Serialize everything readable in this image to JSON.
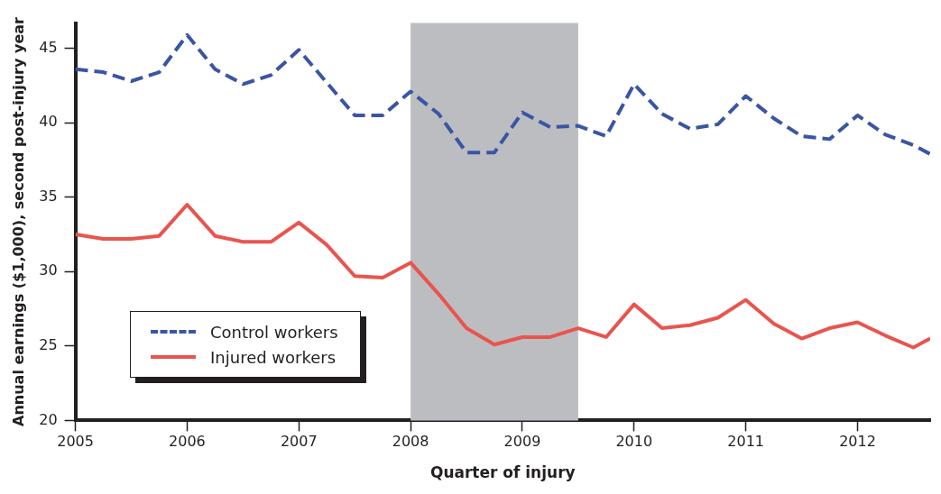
{
  "chart_data": {
    "type": "line",
    "xlabel": "Quarter of injury",
    "ylabel": "Annual earnings ($1,000), second post-injury year",
    "x": [
      2005,
      2005.25,
      2005.5,
      2005.75,
      2006,
      2006.25,
      2006.5,
      2006.75,
      2007,
      2007.25,
      2007.5,
      2007.75,
      2008,
      2008.25,
      2008.5,
      2008.75,
      2009,
      2009.25,
      2009.5,
      2009.75,
      2010,
      2010.25,
      2010.5,
      2010.75,
      2011,
      2011.25,
      2011.5,
      2011.75,
      2012,
      2012.25,
      2012.5,
      2012.65
    ],
    "series": [
      {
        "name": "Control workers",
        "color": "#3a55a4",
        "line_style": "dashed",
        "values": [
          43.6,
          43.4,
          42.8,
          43.4,
          45.9,
          43.6,
          42.6,
          43.2,
          44.9,
          42.7,
          40.5,
          40.5,
          42.1,
          40.6,
          38.0,
          38.0,
          40.7,
          39.7,
          39.8,
          39.1,
          42.6,
          40.6,
          39.6,
          39.9,
          41.8,
          40.3,
          39.1,
          38.9,
          40.5,
          39.2,
          38.5,
          37.9
        ]
      },
      {
        "name": "Injured workers",
        "color": "#e8554e",
        "line_style": "solid",
        "values": [
          32.5,
          32.2,
          32.2,
          32.4,
          34.5,
          32.4,
          32.0,
          32.0,
          33.3,
          31.8,
          29.7,
          29.6,
          30.6,
          28.5,
          26.2,
          25.1,
          25.6,
          25.6,
          26.2,
          25.6,
          27.8,
          26.2,
          26.4,
          26.9,
          28.1,
          26.5,
          25.5,
          26.2,
          26.6,
          25.7,
          24.9,
          25.5
        ]
      }
    ],
    "xlim": [
      2005,
      2012.65
    ],
    "xticks": [
      2005,
      2006,
      2007,
      2008,
      2009,
      2010,
      2011,
      2012
    ],
    "ylim": [
      20,
      46.7
    ],
    "yticks": [
      20,
      25,
      30,
      35,
      40,
      45
    ],
    "bands": [
      {
        "axis": "x",
        "from": 2008,
        "to": 2009.5,
        "color": "#bcbdc1"
      }
    ],
    "grid": false,
    "legend": "left",
    "marker": "none"
  }
}
